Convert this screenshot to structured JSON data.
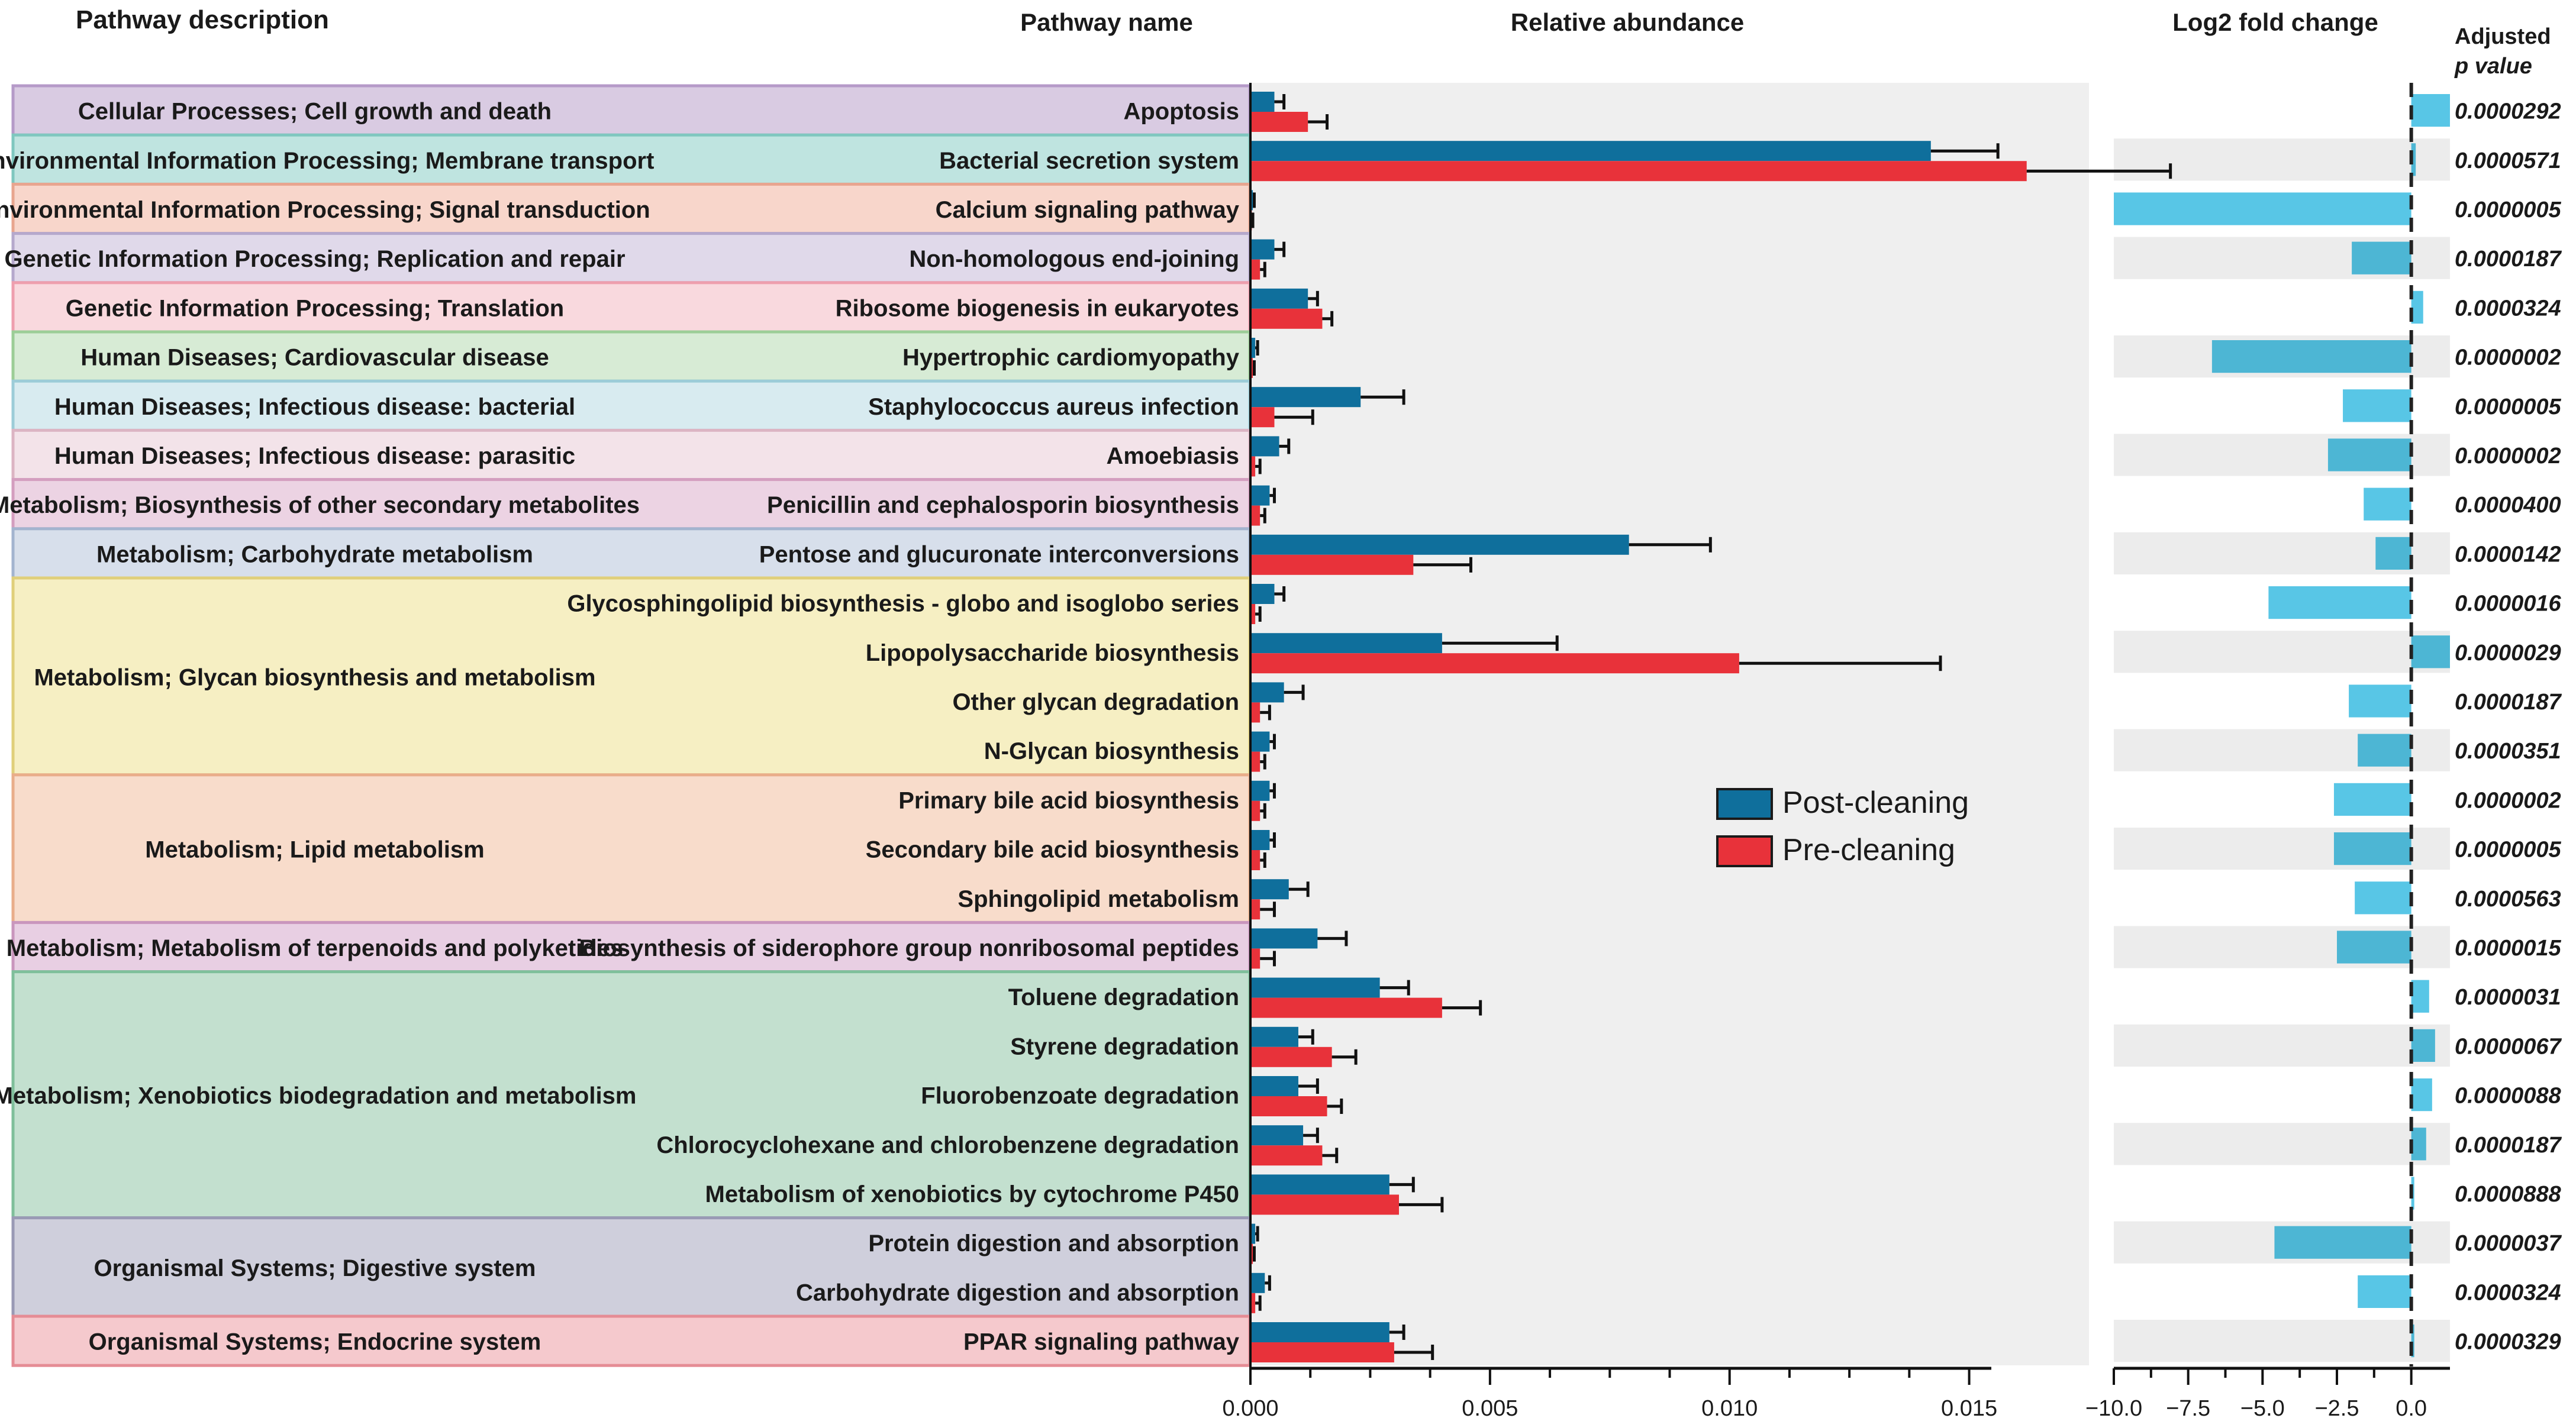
{
  "headers": {
    "pathway_description": "Pathway description",
    "pathway_name": "Pathway name",
    "relative_abundance": "Relative abundance",
    "log2_fold_change": "Log2 fold change",
    "adjusted_line1": "Adjusted",
    "adjusted_line2": "p value"
  },
  "groups": [
    {
      "label": "Cellular Processes; Cell growth and death",
      "start": 0,
      "count": 1,
      "color": "#d9cbe2",
      "border": "#b59ac8"
    },
    {
      "label": "Environmental Information Processing; Membrane transport",
      "start": 1,
      "count": 1,
      "color": "#bfe4e0",
      "border": "#7fc7bf"
    },
    {
      "label": "Environmental Information Processing; Signal transduction",
      "start": 2,
      "count": 1,
      "color": "#f8d6cb",
      "border": "#e8a58f"
    },
    {
      "label": "Genetic Information Processing; Replication and repair",
      "start": 3,
      "count": 1,
      "color": "#e0d9ea",
      "border": "#b5a8cc"
    },
    {
      "label": "Genetic Information Processing; Translation",
      "start": 4,
      "count": 1,
      "color": "#f9d9de",
      "border": "#ee9fae"
    },
    {
      "label": "Human Diseases; Cardiovascular disease",
      "start": 5,
      "count": 1,
      "color": "#d7ebd5",
      "border": "#9ccd97"
    },
    {
      "label": "Human Diseases; Infectious disease: bacterial",
      "start": 6,
      "count": 1,
      "color": "#d8ebf0",
      "border": "#9cccd8"
    },
    {
      "label": "Human Diseases; Infectious disease: parasitic",
      "start": 7,
      "count": 1,
      "color": "#f3e3e9",
      "border": "#dcb4c3"
    },
    {
      "label": "Metabolism; Biosynthesis of other secondary metabolites",
      "start": 8,
      "count": 1,
      "color": "#ecd3e3",
      "border": "#d49ebf"
    },
    {
      "label": "Metabolism; Carbohydrate metabolism",
      "start": 9,
      "count": 1,
      "color": "#d7dfeb",
      "border": "#a3b4cf"
    },
    {
      "label": "Metabolism; Glycan biosynthesis and metabolism",
      "start": 10,
      "count": 4,
      "color": "#f6efc3",
      "border": "#e0cf7a"
    },
    {
      "label": "Metabolism; Lipid metabolism",
      "start": 14,
      "count": 3,
      "color": "#f8dccb",
      "border": "#e9ad8a"
    },
    {
      "label": "Metabolism; Metabolism of terpenoids and polyketides",
      "start": 17,
      "count": 1,
      "color": "#e8cfe3",
      "border": "#c996bd"
    },
    {
      "label": "Metabolism; Xenobiotics biodegradation and metabolism",
      "start": 18,
      "count": 5,
      "color": "#c3e0cf",
      "border": "#7fbf9b"
    },
    {
      "label": "Organismal Systems; Digestive system",
      "start": 23,
      "count": 2,
      "color": "#cfcfdc",
      "border": "#9a9ab5"
    },
    {
      "label": "Organismal Systems; Endocrine system",
      "start": 25,
      "count": 1,
      "color": "#f5c9cd",
      "border": "#e58c95"
    }
  ],
  "pathways": [
    "Apoptosis",
    "Bacterial secretion system",
    "Calcium signaling pathway",
    "Non-homologous end-joining",
    "Ribosome biogenesis in eukaryotes",
    "Hypertrophic cardiomyopathy",
    "Staphylococcus aureus infection",
    "Amoebiasis",
    "Penicillin and cephalosporin biosynthesis",
    "Pentose and glucuronate interconversions",
    "Glycosphingolipid biosynthesis - globo and isoglobo series",
    "Lipopolysaccharide biosynthesis",
    "Other glycan degradation",
    "N-Glycan biosynthesis",
    "Primary bile acid biosynthesis",
    "Secondary bile acid biosynthesis",
    "Sphingolipid metabolism",
    "Biosynthesis of siderophore group nonribosomal peptides",
    "Toluene degradation",
    "Styrene degradation",
    "Fluorobenzoate degradation",
    "Chlorocyclohexane and chlorobenzene degradation",
    "Metabolism of xenobiotics by cytochrome P450",
    "Protein digestion and absorption",
    "Carbohydrate digestion and absorption",
    "PPAR signaling pathway"
  ],
  "p_values": [
    "0.0000292",
    "0.0000571",
    "0.0000005",
    "0.0000187",
    "0.0000324",
    "0.0000002",
    "0.0000005",
    "0.0000002",
    "0.0000400",
    "0.0000142",
    "0.0000016",
    "0.0000029",
    "0.0000187",
    "0.0000351",
    "0.0000002",
    "0.0000005",
    "0.0000563",
    "0.0000015",
    "0.0000031",
    "0.0000067",
    "0.0000088",
    "0.0000187",
    "0.0000888",
    "0.0000037",
    "0.0000324",
    "0.0000329"
  ],
  "legend": {
    "post": {
      "label": "Post-cleaning",
      "color": "#0f6f9c"
    },
    "pre": {
      "label": "Pre-cleaning",
      "color": "#e8323a"
    }
  },
  "colors": {
    "panel_bg": "#efefef",
    "fold_bar": "#58c6e6",
    "fold_bar_shade": "#4db6d4",
    "stripe": "#ececec"
  },
  "chart_data": [
    {
      "type": "bar",
      "orientation": "horizontal",
      "title": "Relative abundance",
      "xlim": [
        0.0,
        0.0175
      ],
      "ticks": [
        0.0,
        0.005,
        0.01,
        0.015
      ],
      "tick_labels": [
        "0.000",
        "0.005",
        "0.010",
        "0.015"
      ],
      "series": [
        {
          "name": "Post-cleaning",
          "values": [
            0.0005,
            0.0142,
            5e-05,
            0.0005,
            0.0012,
            0.0001,
            0.0023,
            0.0006,
            0.0004,
            0.0079,
            0.0005,
            0.004,
            0.0007,
            0.0004,
            0.0004,
            0.0004,
            0.0008,
            0.0014,
            0.0027,
            0.001,
            0.001,
            0.0011,
            0.0029,
            0.0001,
            0.0003,
            0.0029
          ],
          "errors": [
            0.0002,
            0.0014,
            3e-05,
            0.0002,
            0.0002,
            5e-05,
            0.0009,
            0.0002,
            0.0001,
            0.0017,
            0.0002,
            0.0024,
            0.0004,
            0.0001,
            0.0001,
            0.0001,
            0.0004,
            0.0006,
            0.0006,
            0.0003,
            0.0004,
            0.0003,
            0.0005,
            5e-05,
            0.0001,
            0.0003
          ]
        },
        {
          "name": "Pre-cleaning",
          "values": [
            0.0012,
            0.0162,
            3e-05,
            0.0002,
            0.0015,
            5e-05,
            0.0005,
            0.0001,
            0.0002,
            0.0034,
            0.0001,
            0.0102,
            0.0002,
            0.0002,
            0.0002,
            0.0002,
            0.0002,
            0.0002,
            0.004,
            0.0017,
            0.0016,
            0.0015,
            0.0031,
            5e-05,
            0.0001,
            0.003
          ],
          "errors": [
            0.0004,
            0.003,
            2e-05,
            0.0001,
            0.0002,
            3e-05,
            0.0008,
            0.0001,
            0.0001,
            0.0012,
            0.0001,
            0.0042,
            0.0002,
            0.0001,
            0.0001,
            0.0001,
            0.0003,
            0.0003,
            0.0008,
            0.0005,
            0.0003,
            0.0003,
            0.0009,
            3e-05,
            0.0001,
            0.0008
          ]
        }
      ]
    },
    {
      "type": "bar",
      "orientation": "horizontal",
      "title": "Log2 fold change",
      "xlim": [
        -10.0,
        1.3
      ],
      "ticks": [
        -10.0,
        -7.5,
        -5.0,
        -2.5,
        0.0
      ],
      "tick_labels": [
        "−10.0",
        "−7.5",
        "−5.0",
        "−2.5",
        "0.0"
      ],
      "values": [
        1.3,
        0.15,
        -10.0,
        -2.0,
        0.4,
        -6.7,
        -2.3,
        -2.8,
        -1.6,
        -1.2,
        -4.8,
        1.3,
        -2.1,
        -1.8,
        -2.6,
        -2.6,
        -1.9,
        -2.5,
        0.6,
        0.8,
        0.7,
        0.5,
        0.1,
        -4.6,
        -1.8,
        0.1
      ]
    }
  ]
}
